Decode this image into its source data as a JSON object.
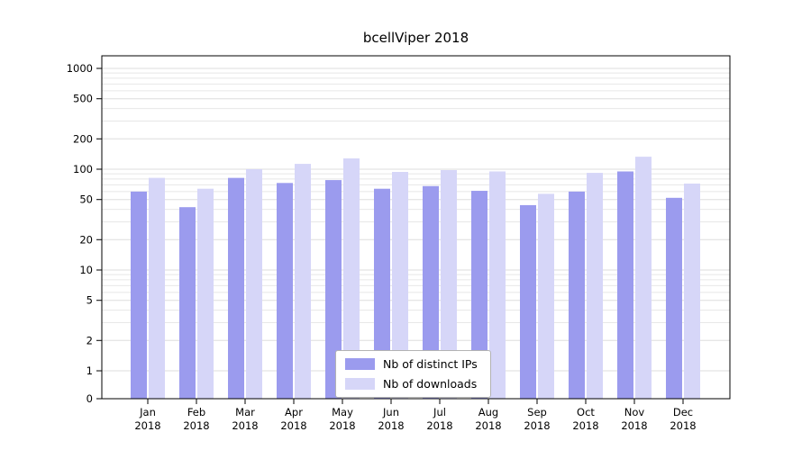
{
  "chart_data": {
    "type": "bar",
    "title": "bcellViper 2018",
    "categories": [
      "Jan",
      "Feb",
      "Mar",
      "Apr",
      "May",
      "Jun",
      "Jul",
      "Aug",
      "Sep",
      "Oct",
      "Nov",
      "Dec"
    ],
    "year_label": "2018",
    "series": [
      {
        "name": "Nb of distinct IPs",
        "color": "#9b9bee",
        "values": [
          60,
          42,
          82,
          73,
          78,
          64,
          68,
          61,
          44,
          60,
          95,
          52
        ]
      },
      {
        "name": "Nb of downloads",
        "color": "#d6d6f8",
        "values": [
          82,
          64,
          100,
          113,
          128,
          94,
          98,
          95,
          57,
          92,
          133,
          72
        ]
      }
    ],
    "yscale": "log",
    "yticks": [
      0,
      1,
      2,
      5,
      10,
      20,
      50,
      100,
      200,
      500,
      1000
    ],
    "ylim": [
      0,
      1000
    ],
    "grid": "horizontal",
    "legend_position": "bottom-center",
    "colors": {
      "grid_minor": "#e7e7e7",
      "grid_major": "#dedede",
      "axis": "#000000",
      "background": "#ffffff"
    }
  }
}
